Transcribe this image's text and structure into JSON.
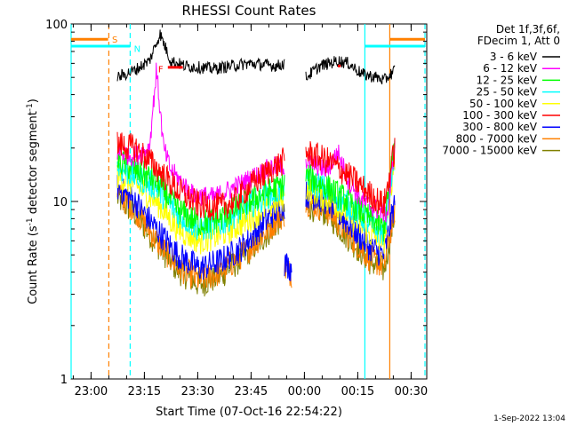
{
  "chart_data": {
    "type": "line",
    "title": "RHESSI Count Rates",
    "xlabel": "Start Time (07-Oct-16 22:54:22)",
    "ylabel": "Count Rate (s",
    "ylabel_sup1": "-1",
    "ylabel_mid": " detector segment",
    "ylabel_sup2": "-1",
    "ylabel_end": ")",
    "x_unit": "minutes after 22:54:22",
    "xlim": [
      0,
      100
    ],
    "ylim": [
      1,
      100
    ],
    "yscale": "log",
    "x_ticks": [
      {
        "label": "23:00",
        "value": 5.6
      },
      {
        "label": "23:15",
        "value": 20.6
      },
      {
        "label": "23:30",
        "value": 35.6
      },
      {
        "label": "23:45",
        "value": 50.6
      },
      {
        "label": "00:00",
        "value": 65.6
      },
      {
        "label": "00:15",
        "value": 80.6
      },
      {
        "label": "00:30",
        "value": 95.6
      }
    ],
    "y_ticks": [
      {
        "label": "1",
        "value": 1
      },
      {
        "label": "10",
        "value": 10
      },
      {
        "label": "100",
        "value": 100
      }
    ],
    "legend_header": [
      "Det 1f,3f,6f,",
      "FDecim 1, Att 0"
    ],
    "legend_position": "outside-right",
    "series": [
      {
        "name": "3 - 6 keV",
        "color": "#000000",
        "segments": [
          [
            [
              13,
              50
            ],
            [
              18,
              55
            ],
            [
              22,
              62
            ],
            [
              25,
              88
            ],
            [
              28,
              62
            ],
            [
              32,
              58
            ],
            [
              40,
              56
            ],
            [
              50,
              60
            ],
            [
              58,
              58
            ],
            [
              60,
              60
            ]
          ],
          [
            [
              66,
              50
            ],
            [
              70,
              58
            ],
            [
              75,
              62
            ],
            [
              78,
              60
            ],
            [
              82,
              52
            ],
            [
              86,
              50
            ],
            [
              88,
              48
            ],
            [
              91,
              55
            ]
          ]
        ]
      },
      {
        "name": "6 - 12 keV",
        "color": "#ff00ff",
        "segments": [
          [
            [
              13,
              19
            ],
            [
              18,
              18
            ],
            [
              22,
              20
            ],
            [
              24,
              55
            ],
            [
              26,
              20
            ],
            [
              28,
              15
            ],
            [
              34,
              11
            ],
            [
              40,
              10.5
            ],
            [
              46,
              12
            ],
            [
              52,
              14
            ],
            [
              56,
              15.5
            ],
            [
              60,
              16
            ]
          ],
          [
            [
              66,
              17
            ],
            [
              72,
              15
            ],
            [
              75,
              19
            ],
            [
              78,
              13
            ],
            [
              82,
              10
            ],
            [
              86,
              9
            ],
            [
              89,
              8.5
            ],
            [
              91,
              21
            ]
          ]
        ]
      },
      {
        "name": "12 - 25 keV",
        "color": "#00ff00",
        "segments": [
          [
            [
              13,
              17
            ],
            [
              18,
              15
            ],
            [
              24,
              13
            ],
            [
              30,
              9
            ],
            [
              36,
              7.5
            ],
            [
              42,
              8
            ],
            [
              48,
              9.5
            ],
            [
              54,
              11
            ],
            [
              58,
              12
            ],
            [
              60,
              12.5
            ]
          ],
          [
            [
              66,
              14
            ],
            [
              72,
              12
            ],
            [
              78,
              10
            ],
            [
              84,
              8
            ],
            [
              88,
              7
            ],
            [
              91,
              22
            ]
          ]
        ]
      },
      {
        "name": "25 - 50 keV",
        "color": "#00ffff",
        "segments": [
          [
            [
              13,
              15.5
            ],
            [
              18,
              14
            ],
            [
              24,
              12
            ],
            [
              30,
              8.5
            ],
            [
              36,
              7
            ],
            [
              42,
              7.5
            ],
            [
              48,
              9
            ],
            [
              54,
              10.5
            ],
            [
              58,
              11.5
            ],
            [
              60,
              12
            ]
          ],
          [
            [
              66,
              13.5
            ],
            [
              72,
              11.5
            ],
            [
              78,
              9.5
            ],
            [
              84,
              7.5
            ],
            [
              88,
              6.5
            ],
            [
              91,
              20
            ]
          ]
        ]
      },
      {
        "name": "50 - 100 keV",
        "color": "#ffff00",
        "segments": [
          [
            [
              13,
              14
            ],
            [
              18,
              12.5
            ],
            [
              24,
              10
            ],
            [
              30,
              7
            ],
            [
              36,
              6
            ],
            [
              42,
              6.5
            ],
            [
              48,
              7.5
            ],
            [
              54,
              9
            ],
            [
              58,
              10
            ],
            [
              60,
              10.5
            ]
          ],
          [
            [
              66,
              12
            ],
            [
              72,
              10.5
            ],
            [
              78,
              8.5
            ],
            [
              84,
              6.5
            ],
            [
              88,
              6
            ],
            [
              91,
              18
            ]
          ]
        ]
      },
      {
        "name": "100 - 300 keV",
        "color": "#ff0000",
        "segments": [
          [
            [
              13,
              21
            ],
            [
              18,
              20
            ],
            [
              22,
              17
            ],
            [
              26,
              14
            ],
            [
              30,
              11.5
            ],
            [
              36,
              9.5
            ],
            [
              42,
              9.3
            ],
            [
              46,
              10
            ],
            [
              50,
              12
            ],
            [
              55,
              14.5
            ],
            [
              60,
              17
            ]
          ],
          [
            [
              66,
              19
            ],
            [
              72,
              17
            ],
            [
              76,
              15
            ],
            [
              80,
              13
            ],
            [
              84,
              11
            ],
            [
              88,
              9.5
            ],
            [
              91,
              20
            ]
          ]
        ]
      },
      {
        "name": "300 - 800 keV",
        "color": "#0000ff",
        "segments": [
          [
            [
              13,
              12
            ],
            [
              18,
              10
            ],
            [
              24,
              7
            ],
            [
              30,
              5
            ],
            [
              36,
              4.2
            ],
            [
              42,
              4.6
            ],
            [
              48,
              5.5
            ],
            [
              54,
              7.5
            ],
            [
              58,
              9
            ],
            [
              60,
              9.5
            ]
          ],
          [
            [
              60,
              4.5
            ],
            [
              62,
              4.2
            ]
          ],
          [
            [
              66,
              11
            ],
            [
              72,
              10
            ],
            [
              78,
              7.5
            ],
            [
              84,
              5.5
            ],
            [
              88,
              5
            ],
            [
              91,
              10
            ]
          ]
        ]
      },
      {
        "name": "800 - 7000 keV",
        "color": "#ff8000",
        "segments": [
          [
            [
              13,
              11
            ],
            [
              18,
              9
            ],
            [
              24,
              6
            ],
            [
              30,
              4.3
            ],
            [
              36,
              3.6
            ],
            [
              42,
              4
            ],
            [
              48,
              5
            ],
            [
              54,
              6.5
            ],
            [
              58,
              8
            ],
            [
              60,
              8.5
            ]
          ],
          [
            [
              60,
              4.2
            ],
            [
              62,
              3.9
            ]
          ],
          [
            [
              66,
              10
            ],
            [
              72,
              9
            ],
            [
              78,
              6.5
            ],
            [
              84,
              4.8
            ],
            [
              88,
              4.3
            ],
            [
              91,
              9
            ]
          ]
        ]
      },
      {
        "name": "7000 - 15000 keV",
        "color": "#808000",
        "segments": [
          [
            [
              13,
              10.5
            ],
            [
              18,
              8.5
            ],
            [
              24,
              5.8
            ],
            [
              30,
              4.1
            ],
            [
              36,
              3.4
            ],
            [
              42,
              3.8
            ],
            [
              48,
              4.8
            ],
            [
              54,
              6.2
            ],
            [
              58,
              7.6
            ],
            [
              60,
              8.2
            ]
          ],
          [
            [
              66,
              9.5
            ],
            [
              72,
              8.6
            ],
            [
              78,
              6.2
            ],
            [
              84,
              4.6
            ],
            [
              88,
              4.1
            ],
            [
              91,
              8.5
            ]
          ]
        ]
      }
    ],
    "vlines": [
      {
        "x": 0,
        "color": "#00ffff",
        "dash": false
      },
      {
        "x": 10.6,
        "color": "#ff8000",
        "dash": true
      },
      {
        "x": 16.6,
        "color": "#00ffff",
        "dash": true
      },
      {
        "x": 82.6,
        "color": "#00ffff",
        "dash": false
      },
      {
        "x": 89.6,
        "color": "#ff8000",
        "dash": false
      },
      {
        "x": 99.5,
        "color": "#00ffff",
        "dash": true
      }
    ],
    "bars": [
      {
        "x0": 0,
        "x1": 10.4,
        "y": 82,
        "color": "#ff8000"
      },
      {
        "x0": 0,
        "x1": 16.6,
        "y": 75,
        "color": "#00ffff"
      },
      {
        "x0": 82.6,
        "x1": 99.5,
        "y": 75,
        "color": "#00ffff"
      },
      {
        "x0": 89.6,
        "x1": 99.5,
        "y": 82,
        "color": "#ff8000"
      },
      {
        "x0": 27.2,
        "x1": 31.4,
        "y": 57,
        "color": "#ff0000"
      },
      {
        "x0": 75,
        "x1": 75.8,
        "y": 58,
        "color": "#ff0000"
      }
    ],
    "markers": [
      {
        "text": "S",
        "x": 12.3,
        "y": 82,
        "color": "#ff8000"
      },
      {
        "text": "N",
        "x": 18.6,
        "y": 73,
        "color": "#00ffff"
      },
      {
        "text": "F",
        "x": 25.2,
        "y": 56,
        "color": "#ff0000"
      }
    ],
    "timestamp": "1-Sep-2022 13:04"
  }
}
